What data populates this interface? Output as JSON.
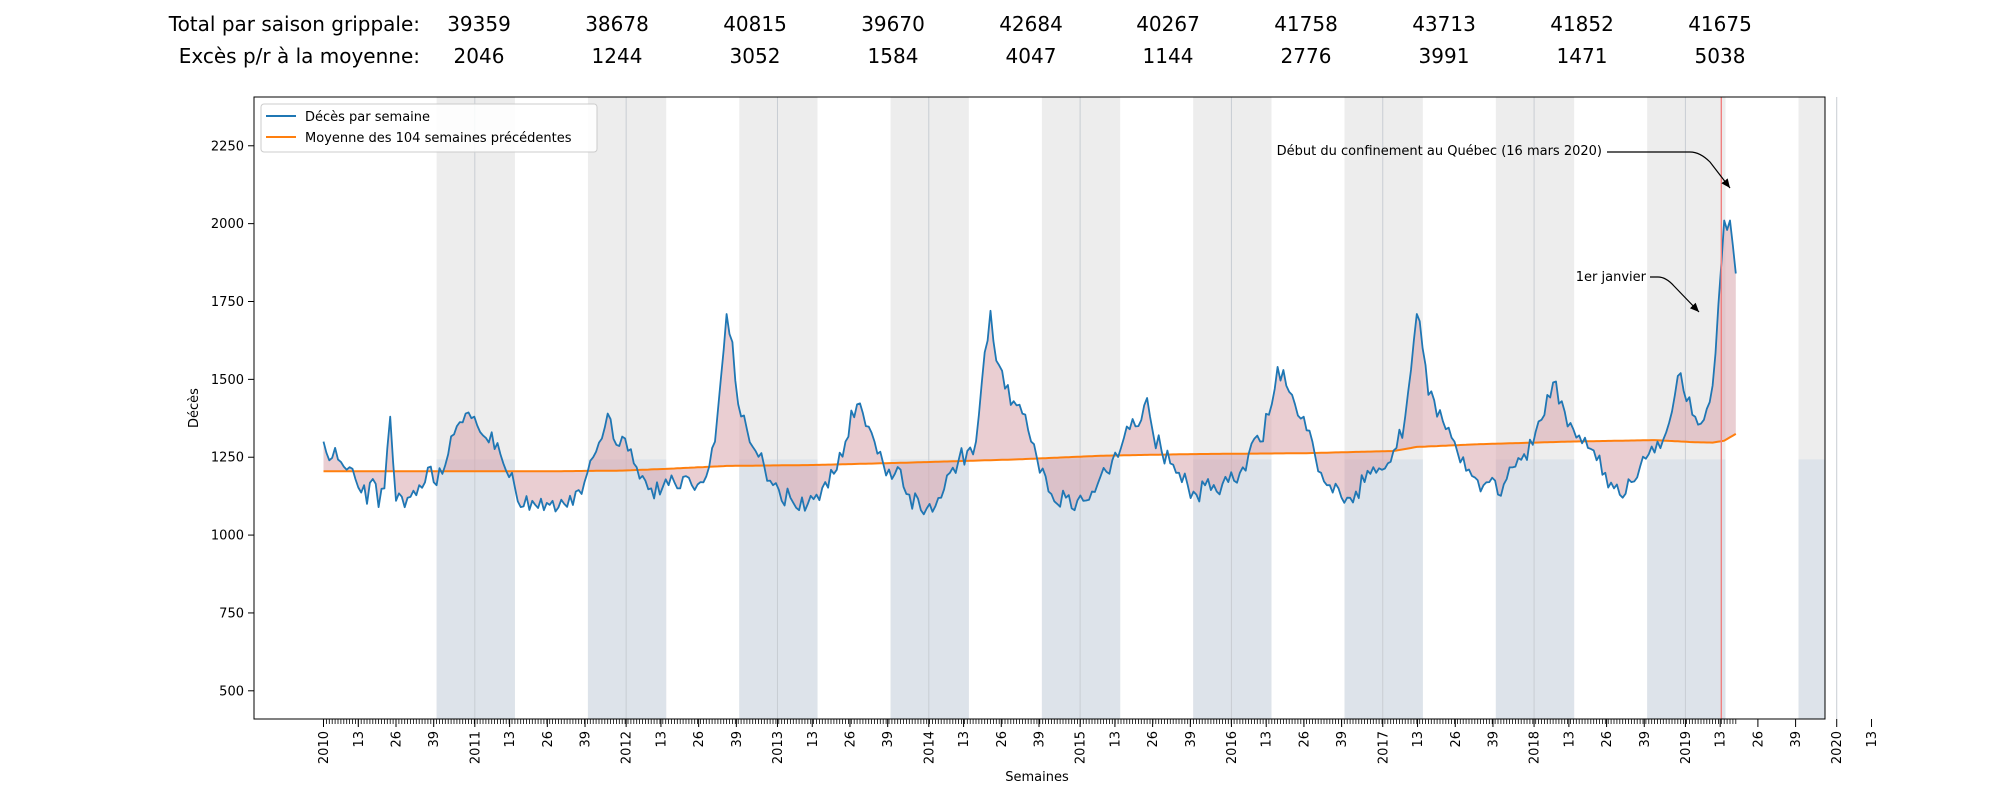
{
  "stats": {
    "total_label": "Total par saison grippale:",
    "excess_label": "Excès p/r à la moyenne:",
    "totals": [
      "39359",
      "38678",
      "40815",
      "39670",
      "42684",
      "40267",
      "41758",
      "43713",
      "41852",
      "41675"
    ],
    "excess": [
      "2046",
      "1244",
      "3052",
      "1584",
      "4047",
      "1144",
      "2776",
      "3991",
      "1471",
      "5038"
    ]
  },
  "chart_data": {
    "type": "line",
    "xlabel": "Semaines",
    "ylabel": "Décès",
    "ylim": [
      400,
      2400
    ],
    "yticks": [
      500,
      750,
      1000,
      1250,
      1500,
      1750,
      2000,
      2250
    ],
    "xtick_labels": [
      "2010",
      "13",
      "26",
      "39",
      "2011",
      "13",
      "26",
      "39",
      "2012",
      "13",
      "26",
      "39",
      "2013",
      "13",
      "26",
      "39",
      "2014",
      "13",
      "26",
      "39",
      "2015",
      "13",
      "26",
      "39",
      "2016",
      "13",
      "26",
      "39",
      "2017",
      "13",
      "26",
      "39",
      "2018",
      "13",
      "26",
      "39",
      "2019",
      "13",
      "26",
      "39",
      "2020",
      "13"
    ],
    "legend": {
      "placement": "top-left",
      "weekly_label": "Décès par semaine",
      "average_label": "Moyenne des 104 semaines précédentes"
    },
    "annotations": {
      "confinement": "Début du confinement au Québec (16 mars 2020)",
      "january": "1er janvier"
    },
    "colors": {
      "weekly": "#1f77b4",
      "average": "#ff7f0e",
      "season_shade": "#e6e6e6",
      "excess_fill": "#d9a6ad",
      "confinement_line": "#f08080"
    },
    "series": [
      {
        "name": "Décès par semaine",
        "keyframes": [
          [
            1,
            1300
          ],
          [
            3,
            1240
          ],
          [
            5,
            1280
          ],
          [
            8,
            1220
          ],
          [
            12,
            1180
          ],
          [
            15,
            1160
          ],
          [
            16,
            1100
          ],
          [
            18,
            1180
          ],
          [
            20,
            1090
          ],
          [
            22,
            1150
          ],
          [
            24,
            1380
          ],
          [
            26,
            1110
          ],
          [
            30,
            1120
          ],
          [
            34,
            1160
          ],
          [
            38,
            1220
          ],
          [
            40,
            1160
          ],
          [
            44,
            1260
          ],
          [
            47,
            1350
          ],
          [
            50,
            1390
          ],
          [
            53,
            1380
          ],
          [
            56,
            1320
          ],
          [
            59,
            1330
          ],
          [
            62,
            1260
          ],
          [
            66,
            1200
          ],
          [
            69,
            1090
          ],
          [
            73,
            1110
          ],
          [
            77,
            1080
          ],
          [
            80,
            1110
          ],
          [
            84,
            1100
          ],
          [
            88,
            1140
          ],
          [
            91,
            1170
          ],
          [
            94,
            1250
          ],
          [
            97,
            1310
          ],
          [
            99,
            1390
          ],
          [
            102,
            1290
          ],
          [
            105,
            1310
          ],
          [
            108,
            1230
          ],
          [
            111,
            1190
          ],
          [
            114,
            1150
          ],
          [
            117,
            1130
          ],
          [
            120,
            1160
          ],
          [
            124,
            1150
          ],
          [
            128,
            1160
          ],
          [
            131,
            1170
          ],
          [
            134,
            1220
          ],
          [
            136,
            1300
          ],
          [
            138,
            1500
          ],
          [
            140,
            1710
          ],
          [
            142,
            1620
          ],
          [
            144,
            1420
          ],
          [
            147,
            1340
          ],
          [
            150,
            1270
          ],
          [
            153,
            1220
          ],
          [
            156,
            1160
          ],
          [
            159,
            1110
          ],
          [
            162,
            1120
          ],
          [
            165,
            1080
          ],
          [
            168,
            1100
          ],
          [
            171,
            1130
          ],
          [
            174,
            1170
          ],
          [
            178,
            1210
          ],
          [
            181,
            1300
          ],
          [
            183,
            1400
          ],
          [
            185,
            1420
          ],
          [
            188,
            1350
          ],
          [
            191,
            1300
          ],
          [
            194,
            1230
          ],
          [
            197,
            1180
          ],
          [
            200,
            1210
          ],
          [
            203,
            1130
          ],
          [
            207,
            1080
          ],
          [
            210,
            1100
          ],
          [
            214,
            1120
          ],
          [
            217,
            1200
          ],
          [
            220,
            1240
          ],
          [
            223,
            1270
          ],
          [
            226,
            1300
          ],
          [
            228,
            1490
          ],
          [
            231,
            1720
          ],
          [
            233,
            1560
          ],
          [
            236,
            1470
          ],
          [
            239,
            1430
          ],
          [
            242,
            1390
          ],
          [
            245,
            1300
          ],
          [
            248,
            1200
          ],
          [
            251,
            1140
          ],
          [
            254,
            1100
          ],
          [
            257,
            1120
          ],
          [
            260,
            1080
          ],
          [
            263,
            1110
          ],
          [
            266,
            1140
          ],
          [
            269,
            1190
          ],
          [
            273,
            1240
          ],
          [
            276,
            1280
          ],
          [
            279,
            1340
          ],
          [
            282,
            1350
          ],
          [
            285,
            1440
          ],
          [
            287,
            1330
          ],
          [
            290,
            1270
          ],
          [
            293,
            1230
          ],
          [
            296,
            1200
          ],
          [
            299,
            1160
          ],
          [
            302,
            1130
          ],
          [
            306,
            1180
          ],
          [
            309,
            1140
          ],
          [
            313,
            1170
          ],
          [
            317,
            1200
          ],
          [
            320,
            1260
          ],
          [
            324,
            1300
          ],
          [
            328,
            1420
          ],
          [
            330,
            1540
          ],
          [
            333,
            1480
          ],
          [
            336,
            1420
          ],
          [
            339,
            1380
          ],
          [
            342,
            1300
          ],
          [
            345,
            1200
          ],
          [
            348,
            1160
          ],
          [
            351,
            1150
          ],
          [
            354,
            1120
          ],
          [
            357,
            1140
          ],
          [
            360,
            1170
          ],
          [
            364,
            1200
          ],
          [
            368,
            1230
          ],
          [
            371,
            1280
          ],
          [
            374,
            1380
          ],
          [
            376,
            1530
          ],
          [
            378,
            1710
          ],
          [
            380,
            1600
          ],
          [
            382,
            1450
          ],
          [
            385,
            1380
          ],
          [
            388,
            1340
          ],
          [
            391,
            1300
          ],
          [
            394,
            1250
          ],
          [
            397,
            1190
          ],
          [
            400,
            1140
          ],
          [
            403,
            1170
          ],
          [
            406,
            1130
          ],
          [
            409,
            1180
          ],
          [
            412,
            1220
          ],
          [
            415,
            1260
          ],
          [
            418,
            1290
          ],
          [
            421,
            1370
          ],
          [
            423,
            1450
          ],
          [
            425,
            1490
          ],
          [
            428,
            1430
          ],
          [
            431,
            1360
          ],
          [
            434,
            1320
          ],
          [
            437,
            1280
          ],
          [
            440,
            1240
          ],
          [
            443,
            1200
          ],
          [
            446,
            1150
          ],
          [
            449,
            1120
          ],
          [
            452,
            1170
          ],
          [
            455,
            1220
          ],
          [
            458,
            1260
          ],
          [
            461,
            1300
          ],
          [
            464,
            1330
          ],
          [
            467,
            1450
          ],
          [
            469,
            1520
          ],
          [
            471,
            1430
          ],
          [
            474,
            1380
          ],
          [
            477,
            1370
          ],
          [
            480,
            1480
          ],
          [
            482,
            1740
          ],
          [
            484,
            2010
          ],
          [
            486,
            2010
          ],
          [
            488,
            1840
          ]
        ]
      },
      {
        "name": "Moyenne des 104 semaines précédentes",
        "keyframes": [
          [
            1,
            1205
          ],
          [
            40,
            1205
          ],
          [
            80,
            1205
          ],
          [
            104,
            1207
          ],
          [
            120,
            1213
          ],
          [
            140,
            1222
          ],
          [
            170,
            1225
          ],
          [
            200,
            1232
          ],
          [
            240,
            1243
          ],
          [
            270,
            1255
          ],
          [
            300,
            1260
          ],
          [
            340,
            1263
          ],
          [
            370,
            1270
          ],
          [
            378,
            1283
          ],
          [
            400,
            1292
          ],
          [
            430,
            1300
          ],
          [
            460,
            1305
          ],
          [
            474,
            1298
          ],
          [
            480,
            1297
          ],
          [
            484,
            1303
          ],
          [
            488,
            1325
          ]
        ]
      }
    ]
  }
}
